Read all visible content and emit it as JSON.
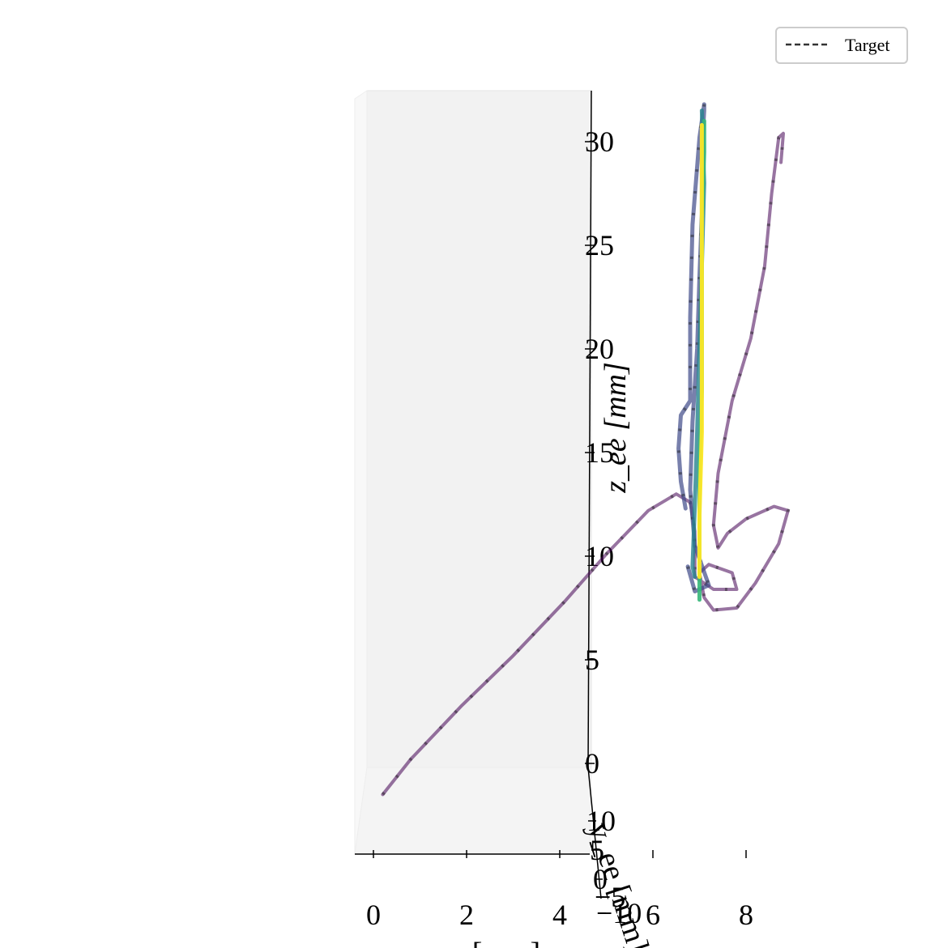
{
  "chart_data": {
    "type": "line",
    "projection": "3d",
    "title": "",
    "xlabel": "[mm]",
    "ylabel": "y_ee [mm]",
    "zlabel": "z_ee [mm]",
    "x_ticks": [
      "0",
      "2",
      "4",
      "6",
      "8"
    ],
    "y_ticks": [
      "10",
      "5",
      "0",
      "−5",
      "−10"
    ],
    "z_ticks": [
      "0",
      "5",
      "10",
      "15",
      "20",
      "25",
      "30"
    ],
    "xlim": [
      -0.5,
      9.5
    ],
    "zlim": [
      0,
      32
    ],
    "legend": {
      "position": "top-right",
      "entries": [
        {
          "label": "Target",
          "style": "dashed",
          "color": "#333333"
        }
      ]
    },
    "colormap": "viridis",
    "series": [
      {
        "color": "#440154",
        "opacity": 0.55,
        "dashes": true,
        "points": [
          [
            0.2,
            -1.5
          ],
          [
            0.8,
            0.2
          ],
          [
            1.9,
            2.8
          ],
          [
            3.0,
            5.2
          ],
          [
            4.1,
            7.8
          ],
          [
            5.0,
            10.1
          ],
          [
            5.9,
            12.2
          ],
          [
            6.5,
            13.0
          ],
          [
            6.8,
            12.6
          ],
          [
            6.9,
            11.2
          ],
          [
            6.9,
            9.8
          ],
          [
            6.9,
            9.0
          ],
          [
            7.3,
            8.4
          ],
          [
            7.8,
            8.4
          ],
          [
            7.7,
            9.2
          ],
          [
            7.2,
            9.6
          ],
          [
            7.0,
            9.2
          ],
          [
            7.1,
            8.0
          ],
          [
            7.3,
            7.4
          ],
          [
            7.8,
            7.5
          ],
          [
            8.2,
            8.7
          ],
          [
            8.7,
            10.6
          ],
          [
            8.9,
            12.2
          ],
          [
            8.6,
            12.4
          ],
          [
            8.0,
            11.8
          ],
          [
            7.6,
            11.1
          ],
          [
            7.4,
            10.4
          ],
          [
            7.3,
            11.5
          ],
          [
            7.4,
            14.0
          ],
          [
            7.7,
            17.5
          ],
          [
            8.1,
            20.5
          ],
          [
            8.4,
            24.0
          ],
          [
            8.55,
            27.5
          ],
          [
            8.7,
            30.2
          ],
          [
            8.8,
            30.4
          ],
          [
            8.75,
            29.0
          ]
        ]
      },
      {
        "color": "#3e4a89",
        "opacity": 0.7,
        "dashes": true,
        "points": [
          [
            6.75,
            9.5
          ],
          [
            6.9,
            8.3
          ],
          [
            7.2,
            8.6
          ],
          [
            6.9,
            10.5
          ],
          [
            6.8,
            13.2
          ],
          [
            6.85,
            16.5
          ],
          [
            6.95,
            20.0
          ],
          [
            7.0,
            23.5
          ],
          [
            7.05,
            26.5
          ],
          [
            7.05,
            29.5
          ],
          [
            7.1,
            31.5
          ],
          [
            7.1,
            31.8
          ],
          [
            7.0,
            30.2
          ],
          [
            6.85,
            26.0
          ],
          [
            6.8,
            21.5
          ],
          [
            6.8,
            17.5
          ],
          [
            6.6,
            16.8
          ],
          [
            6.55,
            15.2
          ],
          [
            6.6,
            13.6
          ],
          [
            6.7,
            12.3
          ]
        ]
      },
      {
        "color": "#26828e",
        "opacity": 0.8,
        "dashes": false,
        "points": [
          [
            7.05,
            31.5
          ],
          [
            7.1,
            28.0
          ],
          [
            7.05,
            24.0
          ],
          [
            7.0,
            20.0
          ],
          [
            6.95,
            16.0
          ],
          [
            6.9,
            12.5
          ],
          [
            6.85,
            9.5
          ],
          [
            6.9,
            9.0
          ]
        ]
      },
      {
        "color": "#35b779",
        "opacity": 0.9,
        "dashes": false,
        "points": [
          [
            7.0,
            7.9
          ],
          [
            7.0,
            10.0
          ],
          [
            7.0,
            14.0
          ],
          [
            7.05,
            18.0
          ],
          [
            7.05,
            22.0
          ],
          [
            7.05,
            26.0
          ],
          [
            7.1,
            29.5
          ],
          [
            7.1,
            31.0
          ]
        ]
      },
      {
        "color": "#fde725",
        "opacity": 0.95,
        "dashes": false,
        "points": [
          [
            7.0,
            9.0
          ],
          [
            7.0,
            12.0
          ],
          [
            7.05,
            16.0
          ],
          [
            7.05,
            20.0
          ],
          [
            7.05,
            24.0
          ],
          [
            7.05,
            28.0
          ],
          [
            7.05,
            30.8
          ]
        ]
      }
    ]
  }
}
